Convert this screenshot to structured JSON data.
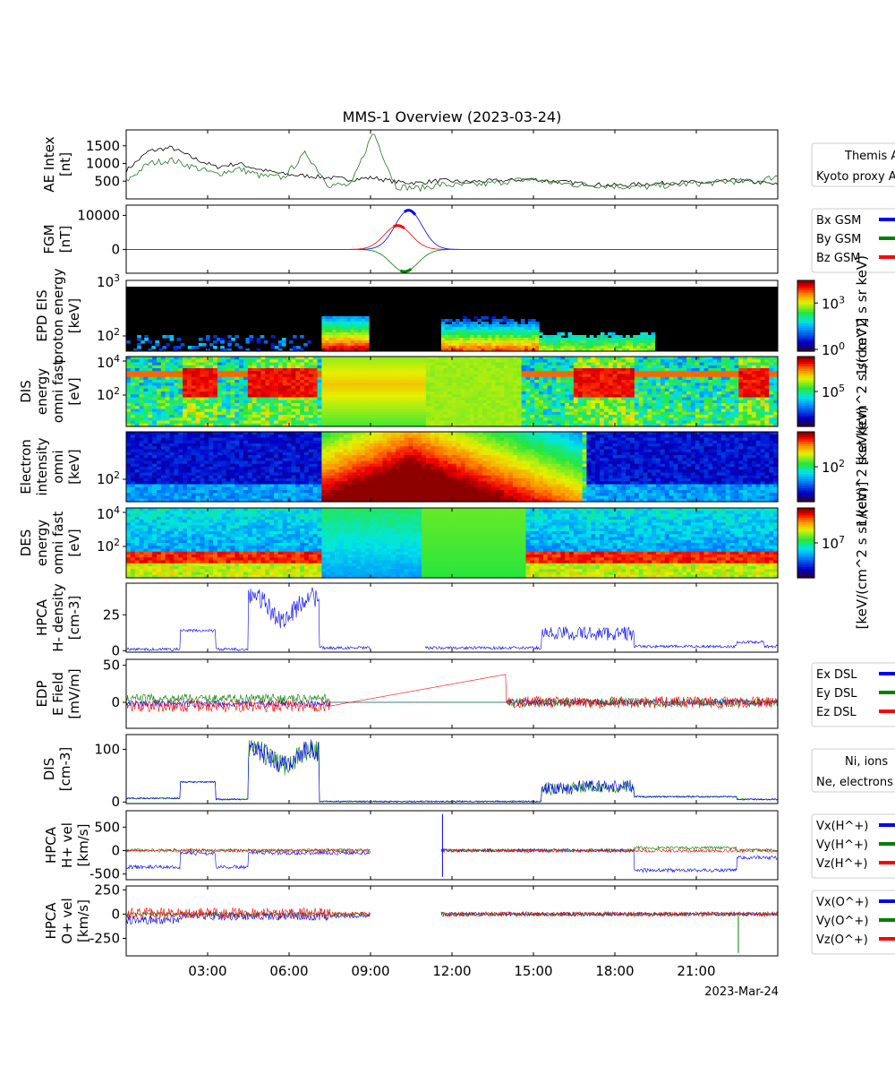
{
  "figure": {
    "title": "MMS-1 Overview (2023-03-24)",
    "date_label": "2023-Mar-24",
    "x_ticks": [
      "03:00",
      "06:00",
      "09:00",
      "12:00",
      "15:00",
      "18:00",
      "21:00"
    ]
  },
  "chart_data": [
    {
      "type": "line",
      "title": "MMS-1 Overview (2023-03-24)",
      "ylabel": [
        "AE Intex",
        "[nt]"
      ],
      "yticks": [
        "500",
        "1000",
        "1500"
      ],
      "ylim": [
        0,
        1950
      ],
      "legend_box": [
        "Themis AE",
        "Kyoto proxy AE"
      ],
      "series": [
        {
          "name": "Themis AE",
          "color": "#000000",
          "values": [
            800,
            1350,
            1450,
            1150,
            900,
            1000,
            820,
            700,
            650,
            600,
            550,
            600,
            480,
            450,
            520,
            480,
            500,
            520,
            560,
            500,
            450,
            400,
            380,
            420,
            450,
            470,
            450,
            520,
            480,
            400
          ]
        },
        {
          "name": "Kyoto proxy AE",
          "color": "#1f7a1f",
          "values": [
            500,
            1000,
            1100,
            900,
            700,
            850,
            650,
            600,
            1300,
            400,
            380,
            1900,
            350,
            300,
            400,
            380,
            420,
            500,
            550,
            460,
            400,
            380,
            350,
            330,
            380,
            420,
            450,
            500,
            480,
            650
          ]
        }
      ]
    },
    {
      "type": "line",
      "ylabel": [
        "FGM",
        "[nT]"
      ],
      "yticks": [
        "0",
        "10000"
      ],
      "ylim": [
        -7000,
        13000
      ],
      "legend": [
        "Bx GSM",
        "By GSM",
        "Bz GSM"
      ],
      "series": [
        {
          "name": "Bx GSM",
          "color": "#0000ff",
          "peak_x": 10.4,
          "peak_y": 11500
        },
        {
          "name": "By GSM",
          "color": "#008000",
          "peak_x": 10.25,
          "peak_y": -6500
        },
        {
          "name": "Bz GSM",
          "color": "#ff0000",
          "peak_x": 10.0,
          "peak_y": 7000
        }
      ]
    },
    {
      "type": "heatmap",
      "ylabel": [
        "EPD EIS",
        "proton energy",
        "[keV]"
      ],
      "yticks": [
        "10^2",
        "10^3"
      ],
      "colorbar_ticks": [
        "10^0",
        "10^3"
      ],
      "colorbar_label": "1/(cm^2 s sr keV)",
      "log_y": true
    },
    {
      "type": "heatmap",
      "ylabel": [
        "DIS",
        "energy",
        "omni fast",
        "[eV]"
      ],
      "yticks": [
        "10^2",
        "10^4"
      ],
      "colorbar_ticks": [
        "10^5"
      ],
      "colorbar_label": "[keV/(cm^2 s sr keV)]",
      "log_y": true
    },
    {
      "type": "heatmap",
      "ylabel": [
        "Electron",
        "intensity",
        "omni",
        "[keV]"
      ],
      "yticks": [
        "10^2"
      ],
      "colorbar_ticks": [
        "10^2"
      ],
      "colorbar_label": "1/(cm^2 s sr keV)",
      "log_y": true
    },
    {
      "type": "heatmap",
      "ylabel": [
        "DES",
        "energy",
        "omni fast",
        "[eV]"
      ],
      "yticks": [
        "10^2",
        "10^4"
      ],
      "colorbar_ticks": [
        "10^7"
      ],
      "colorbar_label": "[keV/(cm^2 s sr keV)]",
      "log_y": true
    },
    {
      "type": "line",
      "ylabel": [
        "HPCA",
        "H- density",
        "[cm-3]"
      ],
      "yticks": [
        "0",
        "25"
      ],
      "ylim": [
        -1,
        47
      ],
      "series": [
        {
          "name": "",
          "color": "#0000ff"
        }
      ]
    },
    {
      "type": "line",
      "ylabel": [
        "EDP",
        "E Field",
        "[mV/m]"
      ],
      "yticks": [
        "0",
        "50"
      ],
      "ylim": [
        -35,
        58
      ],
      "legend": [
        "Ex DSL",
        "Ey DSL",
        "Ez DSL"
      ],
      "series": [
        {
          "name": "Ex DSL",
          "color": "#0000ff"
        },
        {
          "name": "Ey DSL",
          "color": "#008000"
        },
        {
          "name": "Ez DSL",
          "color": "#ff0000"
        }
      ]
    },
    {
      "type": "line",
      "ylabel": [
        "DIS",
        "[cm-3]"
      ],
      "yticks": [
        "0",
        "100"
      ],
      "ylim": [
        -3,
        128
      ],
      "legend_box": [
        "Ni, ions",
        "Ne, electrons"
      ],
      "series": [
        {
          "name": "Ni, ions",
          "color": "#0000ff"
        },
        {
          "name": "Ne, electrons",
          "color": "#008000"
        }
      ]
    },
    {
      "type": "line",
      "ylabel": [
        "HPCA",
        "H+ vel",
        "[km/s]"
      ],
      "yticks": [
        "-500",
        "0",
        "500"
      ],
      "ylim": [
        -620,
        850
      ],
      "legend": [
        "Vx(H^+)",
        "Vy(H^+)",
        "Vz(H^+)"
      ],
      "series": [
        {
          "name": "Vx(H^+)",
          "color": "#0000ff"
        },
        {
          "name": "Vy(H^+)",
          "color": "#008000"
        },
        {
          "name": "Vz(H^+)",
          "color": "#ff0000"
        }
      ]
    },
    {
      "type": "line",
      "ylabel": [
        "HPCA",
        "O+ vel",
        "[km/s]"
      ],
      "yticks": [
        "-250",
        "0",
        "250"
      ],
      "ylim": [
        -430,
        290
      ],
      "legend": [
        "Vx(O^+)",
        "Vy(O^+)",
        "Vz(O^+)"
      ],
      "series": [
        {
          "name": "Vx(O^+)",
          "color": "#0000ff"
        },
        {
          "name": "Vy(O^+)",
          "color": "#008000"
        },
        {
          "name": "Vz(O^+)",
          "color": "#ff0000"
        }
      ]
    }
  ]
}
